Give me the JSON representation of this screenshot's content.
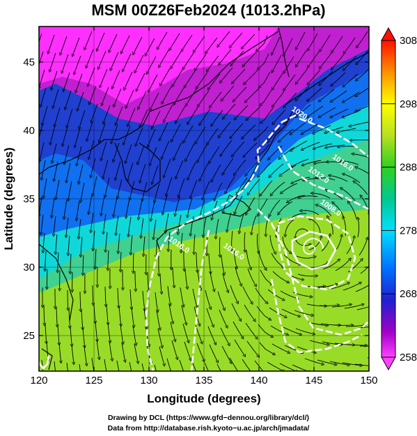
{
  "title": "MSM 00Z26Feb2024 (1013.2hPa)",
  "chart_data": {
    "type": "map",
    "projection": "equirectangular",
    "x_axis": {
      "label": "Longitude (degrees)",
      "range": [
        120,
        150
      ],
      "ticks": [
        120,
        125,
        130,
        135,
        140,
        145,
        150
      ]
    },
    "y_axis": {
      "label": "Latitude  (degrees)",
      "range": [
        22.4,
        47.6
      ],
      "ticks": [
        25,
        30,
        35,
        40,
        45
      ]
    },
    "colorbar": {
      "min": 258,
      "max": 308,
      "ticks": [
        258,
        268,
        278,
        288,
        298,
        308
      ],
      "colors": [
        "#ff40ff",
        "#a000c8",
        "#0000c8",
        "#0080ff",
        "#00e0ff",
        "#00c080",
        "#30d020",
        "#b0e020",
        "#ffff00",
        "#ff8000",
        "#ff0000"
      ]
    },
    "isobar_labels": [
      {
        "text": "1020.0",
        "lon": 143.8,
        "lat": 41.0
      },
      {
        "text": "1016.0",
        "lon": 147.5,
        "lat": 37.5
      },
      {
        "text": "1012.0",
        "lon": 145.3,
        "lat": 36.6
      },
      {
        "text": "1008.0",
        "lon": 146.4,
        "lat": 34.2
      },
      {
        "text": "1016.0",
        "lon": 132.6,
        "lat": 31.5
      },
      {
        "text": "1016.0",
        "lon": 137.6,
        "lat": 31.0
      }
    ],
    "low_center": {
      "lon": 144.0,
      "lat": 32.3
    },
    "grid": true
  },
  "credits": {
    "line1": "Drawing by DCL (https://www.gfd−dennou.org/library/dcl/)",
    "line2": "Data from http://database.rish.kyoto−u.ac.jp/arch/jmadata/"
  }
}
